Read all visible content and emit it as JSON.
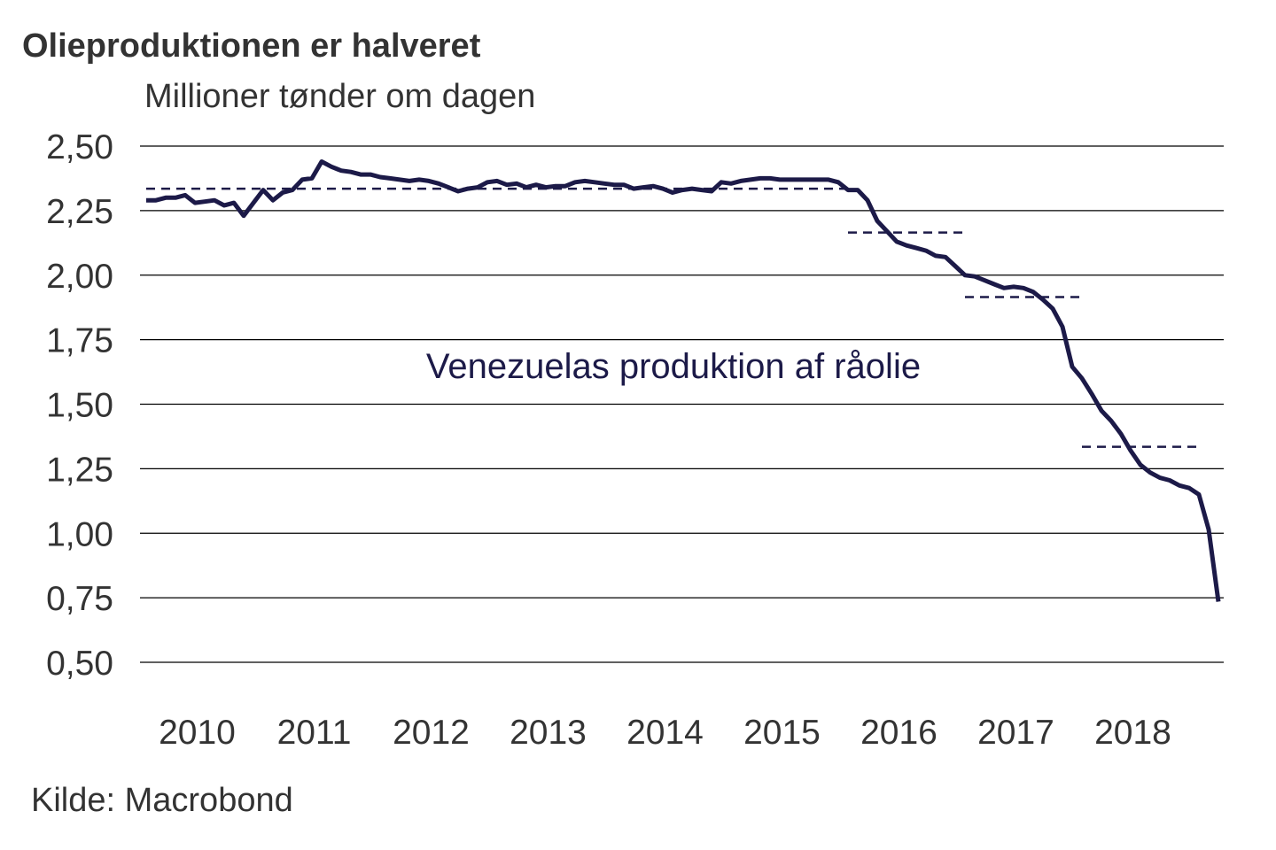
{
  "chart_data": {
    "type": "line",
    "title": "Olieproduktionen er halveret",
    "subtitle": "Millioner tønder om dagen",
    "xlabel": "",
    "ylabel": "Millioner tønder om dagen",
    "ylim": [
      0.5,
      2.5
    ],
    "y_ticks": [
      "2,50",
      "2,25",
      "2,00",
      "1,75",
      "1,50",
      "1,25",
      "1,00",
      "0,75",
      "0,50"
    ],
    "y_tick_values": [
      2.5,
      2.25,
      2.0,
      1.75,
      1.5,
      1.25,
      1.0,
      0.75,
      0.5
    ],
    "x_ticks": [
      "2010",
      "2011",
      "2012",
      "2013",
      "2014",
      "2015",
      "2016",
      "2017",
      "2018"
    ],
    "x_range": [
      "2010-01",
      "2019-03"
    ],
    "grid": "horizontal",
    "line_color": "#1c1a48",
    "annotation": "Venezuelas produktion af råolie",
    "source": "Kilde: Macrobond",
    "series": [
      {
        "name": "Venezuelas produktion af råolie",
        "start": "2010-01",
        "frequency": "monthly",
        "values": [
          2.29,
          2.29,
          2.3,
          2.3,
          2.31,
          2.28,
          2.285,
          2.29,
          2.27,
          2.28,
          2.23,
          2.28,
          2.33,
          2.29,
          2.32,
          2.33,
          2.37,
          2.375,
          2.44,
          2.42,
          2.405,
          2.4,
          2.39,
          2.39,
          2.38,
          2.375,
          2.37,
          2.365,
          2.37,
          2.365,
          2.355,
          2.34,
          2.325,
          2.335,
          2.34,
          2.36,
          2.365,
          2.35,
          2.355,
          2.34,
          2.35,
          2.34,
          2.345,
          2.345,
          2.36,
          2.365,
          2.36,
          2.355,
          2.35,
          2.35,
          2.335,
          2.34,
          2.345,
          2.335,
          2.32,
          2.33,
          2.335,
          2.33,
          2.325,
          2.36,
          2.355,
          2.365,
          2.37,
          2.375,
          2.375,
          2.37,
          2.37,
          2.37,
          2.37,
          2.37,
          2.37,
          2.36,
          2.33,
          2.33,
          2.29,
          2.21,
          2.17,
          2.13,
          2.115,
          2.105,
          2.095,
          2.075,
          2.07,
          2.035,
          2.0,
          1.995,
          1.98,
          1.965,
          1.95,
          1.955,
          1.95,
          1.935,
          1.905,
          1.87,
          1.8,
          1.645,
          1.6,
          1.54,
          1.475,
          1.435,
          1.385,
          1.32,
          1.265,
          1.235,
          1.215,
          1.205,
          1.185,
          1.175,
          1.15,
          1.015,
          0.735
        ]
      }
    ],
    "period_averages": [
      {
        "period": "2010-2015",
        "start": "2010-01",
        "end": "2015-12",
        "value": 2.335
      },
      {
        "period": "2016",
        "start": "2016-01",
        "end": "2016-12",
        "value": 2.165
      },
      {
        "period": "2017",
        "start": "2017-01",
        "end": "2017-12",
        "value": 1.915
      },
      {
        "period": "2018",
        "start": "2018-01",
        "end": "2018-12",
        "value": 1.335
      }
    ]
  }
}
